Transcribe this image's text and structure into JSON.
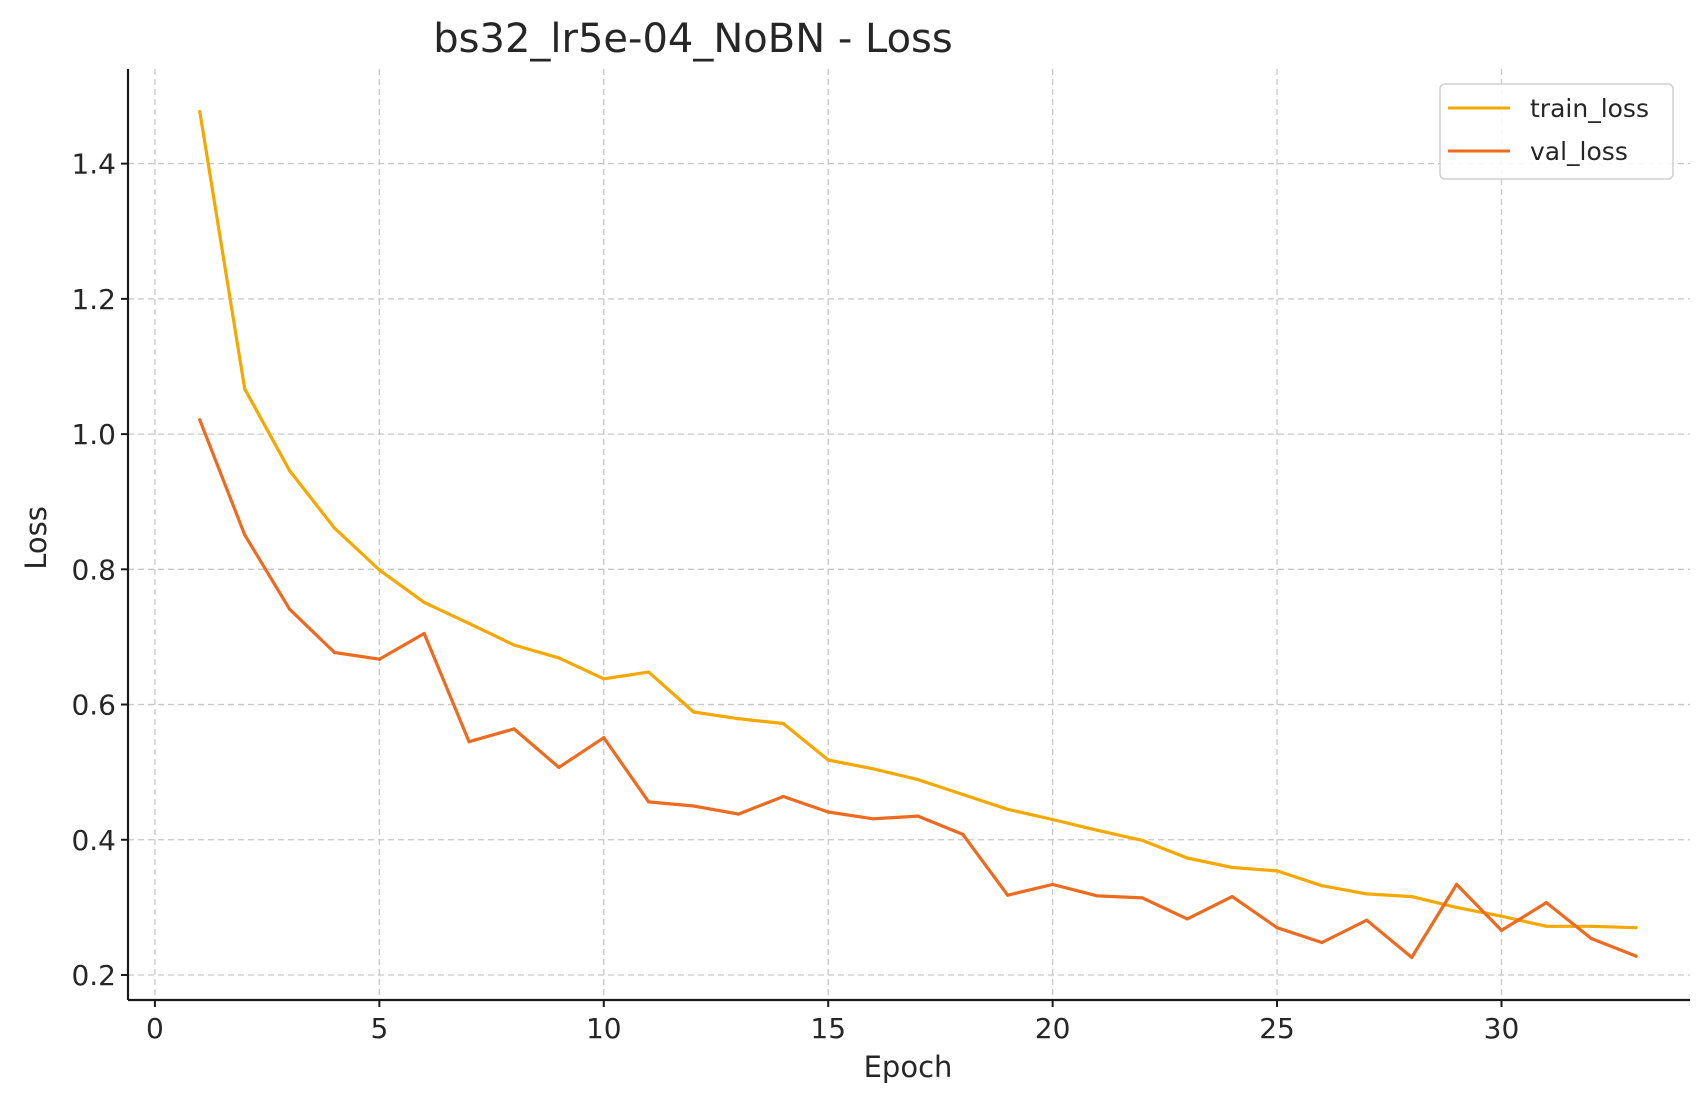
{
  "chart_data": {
    "type": "line",
    "title": "bs32_lr5e-04_NoBN - Loss",
    "xlabel": "Epoch",
    "ylabel": "Loss",
    "xlim": [
      -0.6,
      34.2
    ],
    "ylim": [
      0.163,
      1.54
    ],
    "xticks": [
      0,
      5,
      10,
      15,
      20,
      25,
      30
    ],
    "yticks": [
      0.2,
      0.4,
      0.6,
      0.8,
      1.0,
      1.2,
      1.4
    ],
    "grid": true,
    "legend_position": "top-right",
    "x": [
      1,
      2,
      3,
      4,
      5,
      6,
      7,
      8,
      9,
      10,
      11,
      12,
      13,
      14,
      15,
      16,
      17,
      18,
      19,
      20,
      21,
      22,
      23,
      24,
      25,
      26,
      27,
      28,
      29,
      30,
      31,
      32,
      33
    ],
    "series": [
      {
        "name": "train_loss",
        "color": "#f5a800",
        "values": [
          1.477,
          1.067,
          0.946,
          0.861,
          0.799,
          0.751,
          0.72,
          0.688,
          0.669,
          0.638,
          0.648,
          0.589,
          0.579,
          0.572,
          0.518,
          0.505,
          0.489,
          0.467,
          0.445,
          0.43,
          0.414,
          0.399,
          0.373,
          0.359,
          0.354,
          0.332,
          0.32,
          0.316,
          0.3,
          0.287,
          0.272,
          0.272,
          0.27
        ]
      },
      {
        "name": "val_loss",
        "color": "#ee6a1f",
        "values": [
          1.021,
          0.851,
          0.741,
          0.677,
          0.667,
          0.705,
          0.545,
          0.564,
          0.507,
          0.551,
          0.456,
          0.45,
          0.438,
          0.464,
          0.441,
          0.431,
          0.435,
          0.408,
          0.318,
          0.334,
          0.317,
          0.314,
          0.283,
          0.316,
          0.27,
          0.248,
          0.281,
          0.226,
          0.334,
          0.266,
          0.307,
          0.254,
          0.228
        ]
      }
    ]
  }
}
